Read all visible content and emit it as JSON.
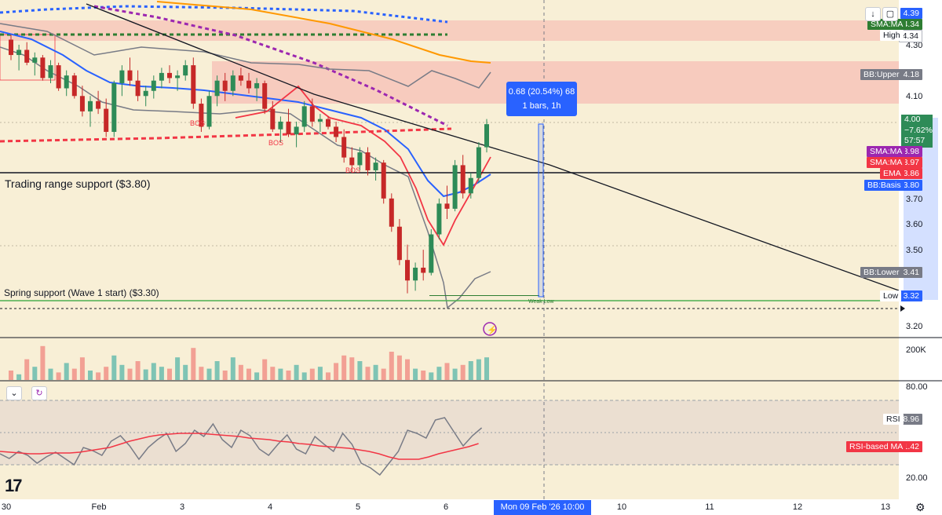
{
  "chart_data": {
    "type": "candlestick",
    "timeframe": "1h",
    "price_axis": {
      "min": 3.15,
      "max": 4.45,
      "ticks": [
        "4.30",
        "4.10",
        "3.70",
        "3.60",
        "3.50",
        "3.20"
      ]
    },
    "time_axis": {
      "labels": [
        "30",
        "Feb",
        "3",
        "4",
        "5",
        "6",
        "10",
        "11",
        "12",
        "13"
      ]
    },
    "candles": [
      [
        4.32,
        4.34,
        4.24,
        4.26
      ],
      [
        4.26,
        4.3,
        4.2,
        4.28
      ],
      [
        4.28,
        4.31,
        4.22,
        4.23
      ],
      [
        4.23,
        4.27,
        4.18,
        4.25
      ],
      [
        4.25,
        4.26,
        4.16,
        4.17
      ],
      [
        4.17,
        4.24,
        4.15,
        4.22
      ],
      [
        4.22,
        4.23,
        4.12,
        4.13
      ],
      [
        4.13,
        4.2,
        4.1,
        4.18
      ],
      [
        4.18,
        4.19,
        4.09,
        4.1
      ],
      [
        4.1,
        4.14,
        4.02,
        4.04
      ],
      [
        4.04,
        4.1,
        3.98,
        4.08
      ],
      [
        4.08,
        4.12,
        4.03,
        4.05
      ],
      [
        4.05,
        4.09,
        3.94,
        3.96
      ],
      [
        3.96,
        4.16,
        3.94,
        4.15
      ],
      [
        4.15,
        4.22,
        4.1,
        4.2
      ],
      [
        4.2,
        4.25,
        4.14,
        4.16
      ],
      [
        4.16,
        4.2,
        4.08,
        4.1
      ],
      [
        4.1,
        4.14,
        4.06,
        4.12
      ],
      [
        4.12,
        4.18,
        4.09,
        4.16
      ],
      [
        4.16,
        4.21,
        4.13,
        4.19
      ],
      [
        4.19,
        4.22,
        4.15,
        4.17
      ],
      [
        4.17,
        4.2,
        4.12,
        4.18
      ],
      [
        4.18,
        4.24,
        4.16,
        4.22
      ],
      [
        4.22,
        4.25,
        4.05,
        4.07
      ],
      [
        4.07,
        4.09,
        3.96,
        3.98
      ],
      [
        3.98,
        4.12,
        3.97,
        4.1
      ],
      [
        4.1,
        4.18,
        4.06,
        4.16
      ],
      [
        4.16,
        4.19,
        4.08,
        4.12
      ],
      [
        4.12,
        4.2,
        4.1,
        4.18
      ],
      [
        4.18,
        4.21,
        4.14,
        4.16
      ],
      [
        4.16,
        4.19,
        4.11,
        4.13
      ],
      [
        4.13,
        4.17,
        4.08,
        4.15
      ],
      [
        4.15,
        4.16,
        4.03,
        4.05
      ],
      [
        4.05,
        4.08,
        3.96,
        3.97
      ],
      [
        3.97,
        4.02,
        3.92,
        4.0
      ],
      [
        4.0,
        4.05,
        3.94,
        3.95
      ],
      [
        3.95,
        4.0,
        3.9,
        3.98
      ],
      [
        3.98,
        4.08,
        3.96,
        4.06
      ],
      [
        4.06,
        4.09,
        3.98,
        4.0
      ],
      [
        4.0,
        4.03,
        3.96,
        4.01
      ],
      [
        4.01,
        4.02,
        3.97,
        3.98
      ],
      [
        3.98,
        4.0,
        3.92,
        3.94
      ],
      [
        3.94,
        3.97,
        3.84,
        3.86
      ],
      [
        3.86,
        3.9,
        3.8,
        3.83
      ],
      [
        3.83,
        3.9,
        3.81,
        3.88
      ],
      [
        3.88,
        3.9,
        3.79,
        3.81
      ],
      [
        3.81,
        3.86,
        3.77,
        3.84
      ],
      [
        3.84,
        3.85,
        3.68,
        3.7
      ],
      [
        3.7,
        3.72,
        3.57,
        3.59
      ],
      [
        3.59,
        3.62,
        3.44,
        3.46
      ],
      [
        3.46,
        3.52,
        3.33,
        3.38
      ],
      [
        3.38,
        3.45,
        3.34,
        3.43
      ],
      [
        3.43,
        3.5,
        3.38,
        3.41
      ],
      [
        3.41,
        3.58,
        3.4,
        3.56
      ],
      [
        3.56,
        3.7,
        3.54,
        3.68
      ],
      [
        3.68,
        3.75,
        3.62,
        3.66
      ],
      [
        3.66,
        3.85,
        3.65,
        3.83
      ],
      [
        3.83,
        3.87,
        3.7,
        3.72
      ],
      [
        3.72,
        3.8,
        3.7,
        3.78
      ],
      [
        3.78,
        3.92,
        3.76,
        3.9
      ],
      [
        3.9,
        4.01,
        3.88,
        3.99
      ]
    ],
    "volume_ratios": [
      0.25,
      0.15,
      0.55,
      0.35,
      0.9,
      0.3,
      0.2,
      0.45,
      0.3,
      0.6,
      0.25,
      0.2,
      0.35,
      0.65,
      0.4,
      0.3,
      0.5,
      0.28,
      0.45,
      0.35,
      0.3,
      0.6,
      0.4,
      0.85,
      0.35,
      0.3,
      0.5,
      0.25,
      0.6,
      0.4,
      0.3,
      0.2,
      0.55,
      0.35,
      0.3,
      0.25,
      0.4,
      0.2,
      0.3,
      0.35,
      0.2,
      0.45,
      0.65,
      0.6,
      0.5,
      0.35,
      0.4,
      0.3,
      0.75,
      0.65,
      0.55,
      0.3,
      0.25,
      0.2,
      0.35,
      0.45,
      0.3,
      0.4,
      0.5,
      0.55,
      0.6
    ],
    "overlays": [
      {
        "name": "SMA:MA",
        "value": "4.34",
        "color": "#2e7d32"
      },
      {
        "name": "BB:Upper",
        "value": "4.18",
        "color": "#787b86"
      },
      {
        "name": "SMA:MA",
        "value": "3.98",
        "color": "#9c27b0"
      },
      {
        "name": "SMA:MA",
        "value": "3.97",
        "color": "#f23645"
      },
      {
        "name": "EMA",
        "value": "3.86",
        "color": "#f23645"
      },
      {
        "name": "BB:Basis",
        "value": "3.80",
        "color": "#2962ff"
      },
      {
        "name": "BB:Lower",
        "value": "3.41",
        "color": "#787b86"
      }
    ],
    "price_markers": {
      "top": "4.39",
      "high_label": "High",
      "high_value": "4.34",
      "last": "4.00",
      "change": "−7.62%",
      "countdown": "57:57",
      "low_label": "Low",
      "low_value": "3.32"
    },
    "annotations": {
      "trading_range": "Trading range support ($3.80)",
      "spring": "Spring support (Wave 1 start) ($3.30)",
      "bos": "BOS",
      "weak_low": "Weak Low"
    },
    "measure": {
      "line1": "0.68 (20.54%) 68",
      "line2": "1 bars, 1h"
    },
    "crosshair_time": "Mon 09 Feb '26   10:00",
    "volume_label": "200K",
    "rsi": {
      "axis_top": "80.00",
      "axis_bottom": "20.00",
      "rsi_name": "RSI",
      "rsi_value": "58.96",
      "ma_name": "RSI-based MA",
      "ma_value": "41.42"
    }
  }
}
